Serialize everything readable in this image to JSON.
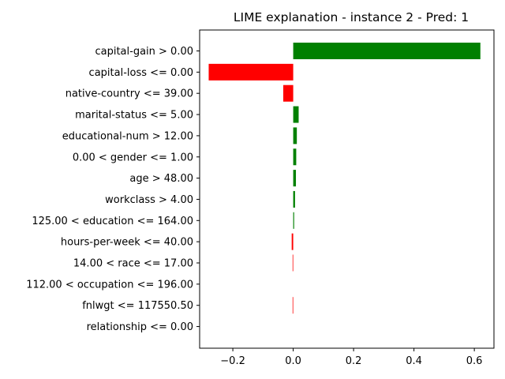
{
  "chart_data": {
    "type": "bar",
    "orientation": "horizontal",
    "title": "LIME explanation - instance 2 - Pred: 1",
    "xlabel": "",
    "ylabel": "",
    "xlim": [
      -0.31,
      0.665
    ],
    "xticks": [
      -0.2,
      0.0,
      0.2,
      0.4,
      0.6
    ],
    "xtick_labels": [
      "−0.2",
      "0.0",
      "0.2",
      "0.4",
      "0.6"
    ],
    "grid": false,
    "positive_color": "#008000",
    "negative_color": "#ff0000",
    "categories": [
      "capital-gain > 0.00",
      "capital-loss <= 0.00",
      "native-country <= 39.00",
      "marital-status <= 5.00",
      "educational-num > 12.00",
      "0.00 < gender <= 1.00",
      "age > 48.00",
      "workclass > 4.00",
      "125.00 < education <= 164.00",
      "hours-per-week <= 40.00",
      "14.00 < race <= 17.00",
      "112.00 < occupation <= 196.00",
      "fnlwgt <= 117550.50",
      "relationship <= 0.00"
    ],
    "values": [
      0.62,
      -0.28,
      -0.033,
      0.018,
      0.012,
      0.01,
      0.009,
      0.006,
      0.003,
      -0.005,
      -0.002,
      0.0,
      -0.002,
      0.0
    ]
  }
}
